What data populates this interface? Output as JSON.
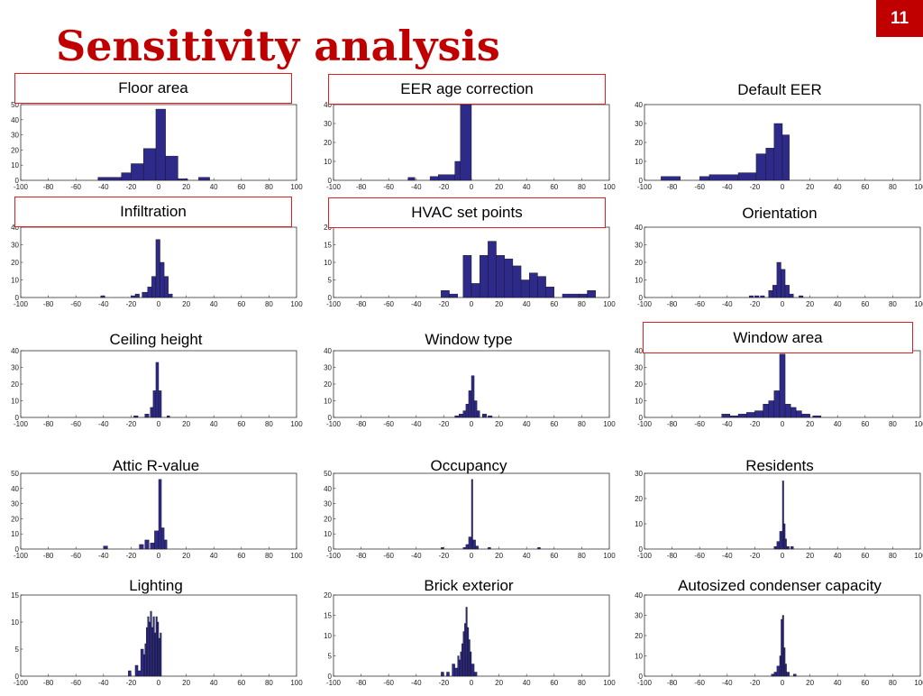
{
  "slide": {
    "title": "Sensitivity analysis",
    "page_number": "11",
    "bar_color": "#2e2a8a",
    "title_color": "#c00000",
    "highlight_color": "#e02020"
  },
  "chart_data": [
    {
      "type": "bar",
      "title": "Floor area",
      "highlighted": true,
      "xlim": [
        -100,
        100
      ],
      "ylim": [
        0,
        50
      ],
      "xticks": [
        -100,
        -80,
        -60,
        -40,
        -20,
        0,
        20,
        40,
        60,
        80,
        100
      ],
      "yticks": [
        0,
        10,
        20,
        30,
        40,
        50
      ],
      "bins": [
        [
          -44,
          -27,
          2
        ],
        [
          -27,
          -20,
          5
        ],
        [
          -20,
          -11,
          11
        ],
        [
          -11,
          -2,
          21
        ],
        [
          -2,
          5,
          47
        ],
        [
          5,
          14,
          16
        ],
        [
          14,
          21,
          1
        ],
        [
          29,
          37,
          2
        ]
      ]
    },
    {
      "type": "bar",
      "title": "EER age correction",
      "highlighted": true,
      "xlim": [
        -100,
        100
      ],
      "ylim": [
        0,
        40
      ],
      "xticks": [
        -100,
        -80,
        -60,
        -40,
        -20,
        0,
        20,
        40,
        60,
        80,
        100
      ],
      "yticks": [
        0,
        10,
        20,
        30,
        40
      ],
      "bins": [
        [
          -46,
          -41,
          1.5
        ],
        [
          -30,
          -24,
          2
        ],
        [
          -24,
          -12,
          3
        ],
        [
          -12,
          -8,
          10
        ],
        [
          -8,
          0,
          40
        ]
      ]
    },
    {
      "type": "bar",
      "title": "Default EER",
      "highlighted": false,
      "xlim": [
        -100,
        100
      ],
      "ylim": [
        0,
        40
      ],
      "xticks": [
        -100,
        -80,
        -60,
        -40,
        -20,
        0,
        20,
        40,
        60,
        80,
        100
      ],
      "yticks": [
        0,
        10,
        20,
        30,
        40
      ],
      "bins": [
        [
          -88,
          -74,
          2
        ],
        [
          -60,
          -53,
          2
        ],
        [
          -53,
          -32,
          3
        ],
        [
          -32,
          -19,
          4
        ],
        [
          -19,
          -12,
          14
        ],
        [
          -12,
          -6,
          17
        ],
        [
          -6,
          0,
          30
        ],
        [
          0,
          5,
          24
        ]
      ]
    },
    {
      "type": "bar",
      "title": "Infiltration",
      "highlighted": true,
      "xlim": [
        -100,
        100
      ],
      "ylim": [
        0,
        40
      ],
      "xticks": [
        -100,
        -80,
        -60,
        -40,
        -20,
        0,
        20,
        40,
        60,
        80,
        100
      ],
      "yticks": [
        0,
        10,
        20,
        30,
        40
      ],
      "bins": [
        [
          -42,
          -39,
          1
        ],
        [
          -20,
          -17,
          1
        ],
        [
          -17,
          -14,
          2
        ],
        [
          -12,
          -8,
          3
        ],
        [
          -8,
          -5,
          6
        ],
        [
          -5,
          -2,
          12
        ],
        [
          -2,
          1,
          33
        ],
        [
          1,
          4,
          20
        ],
        [
          4,
          7,
          12
        ],
        [
          7,
          10,
          2
        ]
      ]
    },
    {
      "type": "bar",
      "title": "HVAC set points",
      "highlighted": true,
      "xlim": [
        -100,
        100
      ],
      "ylim": [
        0,
        20
      ],
      "xticks": [
        -100,
        -80,
        -60,
        -40,
        -20,
        0,
        20,
        40,
        60,
        80,
        100
      ],
      "yticks": [
        0,
        5,
        10,
        15,
        20
      ],
      "bins": [
        [
          -22,
          -16,
          2
        ],
        [
          -16,
          -10,
          1
        ],
        [
          -6,
          0,
          12
        ],
        [
          0,
          6,
          4
        ],
        [
          6,
          12,
          12
        ],
        [
          12,
          18,
          16
        ],
        [
          18,
          24,
          12
        ],
        [
          24,
          30,
          11
        ],
        [
          30,
          36,
          9
        ],
        [
          36,
          42,
          5
        ],
        [
          42,
          48,
          7
        ],
        [
          48,
          54,
          6
        ],
        [
          54,
          60,
          3
        ],
        [
          66,
          78,
          1
        ],
        [
          78,
          84,
          1
        ],
        [
          84,
          90,
          2
        ]
      ]
    },
    {
      "type": "bar",
      "title": "Orientation",
      "highlighted": false,
      "xlim": [
        -100,
        100
      ],
      "ylim": [
        0,
        40
      ],
      "xticks": [
        -100,
        -80,
        -60,
        -40,
        -20,
        0,
        20,
        40,
        60,
        80,
        100
      ],
      "yticks": [
        0,
        10,
        20,
        30,
        40
      ],
      "bins": [
        [
          -24,
          -21,
          1
        ],
        [
          -20,
          -17,
          1
        ],
        [
          -16,
          -13,
          1
        ],
        [
          -10,
          -7,
          4
        ],
        [
          -7,
          -4,
          7
        ],
        [
          -4,
          -1,
          20
        ],
        [
          -1,
          2,
          16
        ],
        [
          2,
          5,
          7
        ],
        [
          5,
          8,
          2
        ],
        [
          12,
          15,
          1
        ]
      ]
    },
    {
      "type": "bar",
      "title": "Ceiling height",
      "highlighted": false,
      "xlim": [
        -100,
        100
      ],
      "ylim": [
        0,
        40
      ],
      "xticks": [
        -100,
        -80,
        -60,
        -40,
        -20,
        0,
        20,
        40,
        60,
        80,
        100
      ],
      "yticks": [
        0,
        10,
        20,
        30,
        40
      ],
      "bins": [
        [
          -18,
          -15,
          1
        ],
        [
          -10,
          -7,
          2
        ],
        [
          -6,
          -4,
          6
        ],
        [
          -4,
          -2,
          16
        ],
        [
          -2,
          0,
          33
        ],
        [
          0,
          2,
          16
        ],
        [
          6,
          8,
          1
        ]
      ]
    },
    {
      "type": "bar",
      "title": "Window type",
      "highlighted": false,
      "xlim": [
        -100,
        100
      ],
      "ylim": [
        0,
        40
      ],
      "xticks": [
        -100,
        -80,
        -60,
        -40,
        -20,
        0,
        20,
        40,
        60,
        80,
        100
      ],
      "yticks": [
        0,
        10,
        20,
        30,
        40
      ],
      "bins": [
        [
          -12,
          -9,
          1
        ],
        [
          -9,
          -6,
          2
        ],
        [
          -6,
          -4,
          4
        ],
        [
          -4,
          -2,
          8
        ],
        [
          -2,
          0,
          16
        ],
        [
          0,
          2,
          25
        ],
        [
          2,
          4,
          10
        ],
        [
          4,
          6,
          4
        ],
        [
          8,
          11,
          2
        ],
        [
          12,
          15,
          1
        ]
      ]
    },
    {
      "type": "bar",
      "title": "Window area",
      "highlighted": true,
      "xlim": [
        -100,
        100
      ],
      "ylim": [
        0,
        40
      ],
      "xticks": [
        -100,
        -80,
        -60,
        -40,
        -20,
        0,
        20,
        40,
        60,
        80,
        100
      ],
      "yticks": [
        0,
        10,
        20,
        30,
        40
      ],
      "bins": [
        [
          -44,
          -38,
          2
        ],
        [
          -38,
          -32,
          1
        ],
        [
          -32,
          -26,
          2
        ],
        [
          -26,
          -20,
          3
        ],
        [
          -20,
          -14,
          4
        ],
        [
          -14,
          -10,
          8
        ],
        [
          -10,
          -6,
          10
        ],
        [
          -6,
          -2,
          16
        ],
        [
          -2,
          2,
          38
        ],
        [
          2,
          6,
          8
        ],
        [
          6,
          10,
          6
        ],
        [
          10,
          14,
          4
        ],
        [
          14,
          20,
          2
        ],
        [
          22,
          28,
          1
        ]
      ]
    },
    {
      "type": "bar",
      "title": "Attic R-value",
      "highlighted": false,
      "xlim": [
        -100,
        100
      ],
      "ylim": [
        0,
        50
      ],
      "xticks": [
        -100,
        -80,
        -60,
        -40,
        -20,
        0,
        20,
        40,
        60,
        80,
        100
      ],
      "yticks": [
        0,
        10,
        20,
        30,
        40,
        50
      ],
      "bins": [
        [
          -40,
          -37,
          2
        ],
        [
          -14,
          -11,
          3
        ],
        [
          -10,
          -7,
          6
        ],
        [
          -6,
          -3,
          4
        ],
        [
          -3,
          0,
          12
        ],
        [
          0,
          2,
          46
        ],
        [
          2,
          4,
          14
        ],
        [
          4,
          6,
          6
        ]
      ]
    },
    {
      "type": "bar",
      "title": "Occupancy",
      "highlighted": false,
      "xlim": [
        -100,
        100
      ],
      "ylim": [
        0,
        50
      ],
      "xticks": [
        -100,
        -80,
        -60,
        -40,
        -20,
        0,
        20,
        40,
        60,
        80,
        100
      ],
      "yticks": [
        0,
        10,
        20,
        30,
        40,
        50
      ],
      "bins": [
        [
          -22,
          -20,
          1
        ],
        [
          -6,
          -4,
          1
        ],
        [
          -4,
          -2,
          3
        ],
        [
          -2,
          0,
          8
        ],
        [
          0,
          1,
          46
        ],
        [
          1,
          3,
          6
        ],
        [
          3,
          5,
          2
        ],
        [
          12,
          14,
          1
        ],
        [
          48,
          50,
          1
        ]
      ]
    },
    {
      "type": "bar",
      "title": "Residents",
      "highlighted": false,
      "xlim": [
        -100,
        100
      ],
      "ylim": [
        0,
        30
      ],
      "xticks": [
        -100,
        -80,
        -60,
        -40,
        -20,
        0,
        20,
        40,
        60,
        80,
        100
      ],
      "yticks": [
        0,
        10,
        20,
        30
      ],
      "bins": [
        [
          -6,
          -4,
          1
        ],
        [
          -4,
          -2,
          3
        ],
        [
          -2,
          0,
          7
        ],
        [
          0,
          1,
          27
        ],
        [
          1,
          2,
          10
        ],
        [
          2,
          3,
          4
        ],
        [
          3,
          5,
          1
        ],
        [
          6,
          8,
          1
        ]
      ]
    },
    {
      "type": "bar",
      "title": "Lighting",
      "highlighted": false,
      "xlim": [
        -100,
        100
      ],
      "ylim": [
        0,
        15
      ],
      "xticks": [
        -100,
        -80,
        -60,
        -40,
        -20,
        0,
        20,
        40,
        60,
        80,
        100
      ],
      "yticks": [
        0,
        5,
        10,
        15
      ],
      "bins": [
        [
          -22,
          -20,
          1
        ],
        [
          -17,
          -15,
          2
        ],
        [
          -15,
          -13,
          1
        ],
        [
          -13,
          -11,
          5
        ],
        [
          -11,
          -10,
          4
        ],
        [
          -10,
          -9,
          6
        ],
        [
          -9,
          -8,
          9
        ],
        [
          -8,
          -7,
          11
        ],
        [
          -7,
          -6,
          10
        ],
        [
          -6,
          -5,
          12
        ],
        [
          -5,
          -4,
          9
        ],
        [
          -4,
          -3,
          11
        ],
        [
          -3,
          -2,
          8
        ],
        [
          -2,
          -1,
          11
        ],
        [
          -1,
          0,
          10
        ],
        [
          0,
          1,
          7
        ],
        [
          1,
          2,
          8
        ]
      ]
    },
    {
      "type": "bar",
      "title": "Brick exterior",
      "highlighted": false,
      "xlim": [
        -100,
        100
      ],
      "ylim": [
        0,
        20
      ],
      "xticks": [
        -100,
        -80,
        -60,
        -40,
        -20,
        0,
        20,
        40,
        60,
        80,
        100
      ],
      "yticks": [
        0,
        5,
        10,
        15,
        20
      ],
      "bins": [
        [
          -22,
          -20,
          1
        ],
        [
          -18,
          -16,
          1
        ],
        [
          -14,
          -12,
          3
        ],
        [
          -12,
          -10,
          2
        ],
        [
          -10,
          -9,
          5
        ],
        [
          -9,
          -8,
          4
        ],
        [
          -8,
          -7,
          6
        ],
        [
          -7,
          -6,
          8
        ],
        [
          -6,
          -5,
          11
        ],
        [
          -5,
          -4,
          13
        ],
        [
          -4,
          -3,
          17
        ],
        [
          -3,
          -2,
          12
        ],
        [
          -2,
          -1,
          9
        ],
        [
          -1,
          0,
          6
        ],
        [
          0,
          2,
          3
        ],
        [
          2,
          4,
          1
        ]
      ]
    },
    {
      "type": "bar",
      "title": "Autosized condenser capacity",
      "highlighted": false,
      "xlim": [
        -100,
        100
      ],
      "ylim": [
        0,
        40
      ],
      "xticks": [
        -100,
        -80,
        -60,
        -40,
        -20,
        0,
        20,
        40,
        60,
        80,
        100
      ],
      "yticks": [
        0,
        10,
        20,
        30,
        40
      ],
      "bins": [
        [
          -8,
          -6,
          1
        ],
        [
          -6,
          -4,
          2
        ],
        [
          -4,
          -2,
          5
        ],
        [
          -2,
          -1,
          10
        ],
        [
          -1,
          0,
          28
        ],
        [
          0,
          1,
          30
        ],
        [
          1,
          2,
          14
        ],
        [
          2,
          3,
          6
        ],
        [
          3,
          5,
          2
        ],
        [
          8,
          10,
          1
        ]
      ]
    }
  ]
}
